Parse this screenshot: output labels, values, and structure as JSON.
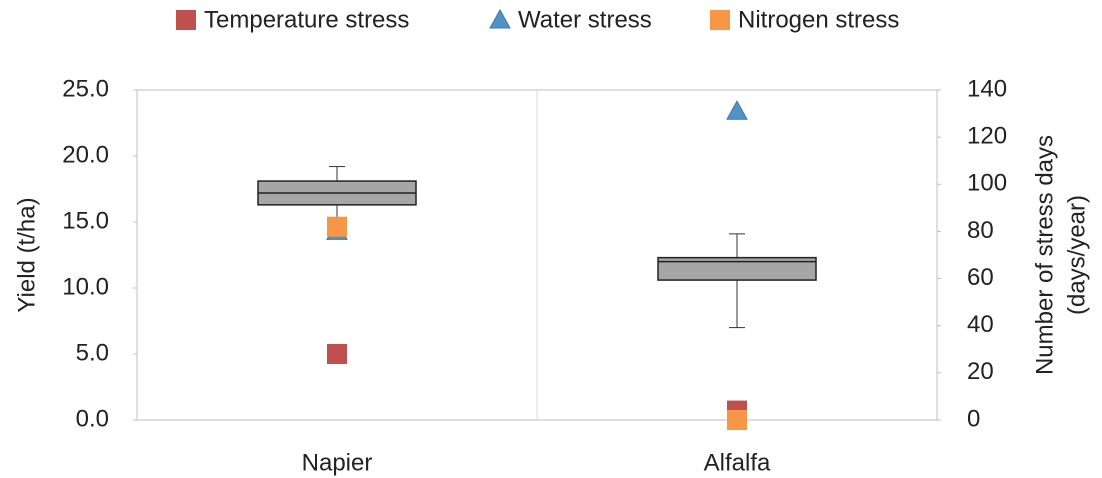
{
  "chart_data": {
    "type": "box",
    "categories": [
      "Napier",
      "Alfalfa"
    ],
    "ylabel": "Yield (t/ha)",
    "y2label": [
      "Number of stress days",
      "(days/year)"
    ],
    "ylim": [
      0,
      25
    ],
    "yticks": [
      {
        "value": 0,
        "label": "0.0"
      },
      {
        "value": 5,
        "label": "5.0"
      },
      {
        "value": 10,
        "label": "10.0"
      },
      {
        "value": 15,
        "label": "15.0"
      },
      {
        "value": 20,
        "label": "20.0"
      },
      {
        "value": 25,
        "label": "25.0"
      }
    ],
    "y2lim": [
      0,
      140
    ],
    "y2ticks": [
      0,
      20,
      40,
      60,
      80,
      100,
      120,
      140
    ],
    "box": {
      "color": "#a6a6a6",
      "min": [
        14.8,
        7.0
      ],
      "q1": [
        16.3,
        10.6
      ],
      "median": [
        17.2,
        12.0
      ],
      "q3": [
        18.1,
        12.3
      ],
      "max": [
        19.2,
        14.1
      ]
    },
    "series": [
      {
        "name": "Temperature stress",
        "color": "#c0504d",
        "marker": "square",
        "axis": "y2",
        "values": [
          28,
          4
        ]
      },
      {
        "name": "Water stress",
        "color": "#4f93c8",
        "marker": "triangle",
        "axis": "y2",
        "values": [
          80,
          131
        ]
      },
      {
        "name": "Nitrogen stress",
        "color": "#f79646",
        "marker": "square",
        "axis": "y2",
        "values": [
          82,
          0
        ]
      }
    ]
  }
}
